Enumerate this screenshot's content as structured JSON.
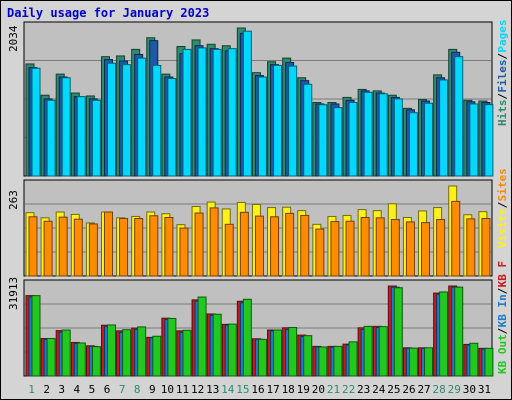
{
  "title": "Daily usage for January 2023",
  "colors": {
    "background": "#d4d4d4",
    "panel": "#c0c0c0",
    "hits": "#2e8b6e",
    "files": "#1c5aa8",
    "pages": "#00d8ff",
    "visits": "#ffef1a",
    "sites": "#ff8c00",
    "kb_in": "#1a7dd1",
    "kb_out": "#21c81f",
    "kb_f": "#cc1a1a",
    "title": "#0000cc",
    "weekend_day_label": "#2e8b6e"
  },
  "axes": {
    "top_max_label": "2034",
    "mid_max_label": "263",
    "bottom_max_label": "31913"
  },
  "legends": {
    "top": [
      {
        "text": "Hits",
        "color": "#2e8b6e"
      },
      {
        "text": "Files",
        "color": "#1c5aa8"
      },
      {
        "text": "Pages",
        "color": "#00d8ff"
      }
    ],
    "mid": [
      {
        "text": "Visits",
        "color": "#ffef1a"
      },
      {
        "text": "Sites",
        "color": "#ff8c00"
      }
    ],
    "bottom": [
      {
        "text": "KB Out",
        "color": "#21c81f"
      },
      {
        "text": "KB In",
        "color": "#1a7dd1"
      },
      {
        "text": "KB F",
        "color": "#cc1a1a"
      }
    ]
  },
  "chart_data": {
    "type": "bar",
    "title": "Daily usage for January 2023",
    "x": [
      "1",
      "2",
      "3",
      "4",
      "5",
      "6",
      "7",
      "8",
      "9",
      "10",
      "11",
      "12",
      "13",
      "14",
      "15",
      "16",
      "17",
      "18",
      "19",
      "20",
      "21",
      "22",
      "23",
      "24",
      "25",
      "26",
      "27",
      "28",
      "29",
      "30",
      "31"
    ],
    "weekend_days": [
      "1",
      "7",
      "8",
      "14",
      "15",
      "21",
      "22",
      "28",
      "29"
    ],
    "panels": [
      {
        "name": "Hits/Files/Pages",
        "ymax": 2034,
        "ymax_label": "2034",
        "series": [
          {
            "name": "Hits",
            "values": [
              1540,
              1110,
              1400,
              1140,
              1100,
              1640,
              1650,
              1740,
              1900,
              1400,
              1780,
              1870,
              1810,
              1790,
              2034,
              1420,
              1570,
              1620,
              1350,
              1010,
              1010,
              1080,
              1190,
              1170,
              1110,
              930,
              1050,
              1390,
              1740,
              1040,
              1030
            ]
          },
          {
            "name": "Files",
            "values": [
              1490,
              1060,
              1360,
              1090,
              1060,
              1600,
              1580,
              1670,
              1860,
              1360,
              1680,
              1790,
              1750,
              1720,
              1960,
              1380,
              1530,
              1560,
              1310,
              990,
              990,
              1040,
              1170,
              1140,
              1080,
              910,
              1030,
              1350,
              1700,
              1020,
              1010
            ]
          },
          {
            "name": "Pages",
            "values": [
              1480,
              1040,
              1350,
              1090,
              1040,
              1550,
              1530,
              1620,
              1520,
              1340,
              1740,
              1760,
              1740,
              1750,
              1990,
              1360,
              1520,
              1510,
              1260,
              980,
              940,
              1010,
              1150,
              1130,
              1060,
              870,
              1000,
              1320,
              1640,
              990,
              980
            ]
          }
        ]
      },
      {
        "name": "Visits/Sites",
        "ymax": 263,
        "ymax_label": "263",
        "series": [
          {
            "name": "Visits",
            "values": [
              185,
              170,
              187,
              180,
              155,
              187,
              170,
              174,
              187,
              182,
              150,
              203,
              216,
              196,
              215,
              209,
              200,
              201,
              191,
              151,
              174,
              177,
              194,
              191,
              211,
              171,
              190,
              200,
              263,
              179,
              188
            ]
          },
          {
            "name": "Sites",
            "values": [
              173,
              160,
              172,
              166,
              152,
              187,
              168,
              168,
              176,
              171,
              140,
              184,
              199,
              151,
              186,
              175,
              173,
              183,
              177,
              137,
              159,
              160,
              171,
              170,
              165,
              158,
              156,
              165,
              218,
              167,
              168
            ]
          }
        ]
      },
      {
        "name": "KB F/KB In/KB Out",
        "ymax": 31913,
        "ymax_label": "31913",
        "series": [
          {
            "name": "KB F",
            "values": [
              28500,
              13300,
              16100,
              11900,
              10700,
              18000,
              16000,
              17000,
              13700,
              20500,
              16000,
              27000,
              22000,
              18300,
              26500,
              13200,
              16300,
              17100,
              14500,
              10500,
              10500,
              11300,
              17100,
              17600,
              31900,
              10000,
              10000,
              29400,
              31913,
              11200,
              9800
            ]
          },
          {
            "name": "KB In",
            "values": [
              28000,
              13000,
              15500,
              11500,
              10500,
              17500,
              15500,
              16500,
              13500,
              20000,
              15500,
              26500,
              21500,
              18000,
              26000,
              13000,
              16000,
              16500,
              14000,
              10300,
              10200,
              11000,
              16500,
              17200,
              31500,
              9800,
              9800,
              29000,
              31500,
              11000,
              9600
            ]
          },
          {
            "name": "KB Out",
            "values": [
              28500,
              13300,
              16300,
              11700,
              10400,
              18100,
              16400,
              17400,
              14100,
              20400,
              16200,
              28000,
              21900,
              18400,
              27200,
              13000,
              16300,
              17200,
              14300,
              10300,
              10500,
              12100,
              17600,
              17500,
              31300,
              9900,
              10000,
              29800,
              31500,
              11600,
              9800
            ]
          }
        ]
      }
    ]
  }
}
